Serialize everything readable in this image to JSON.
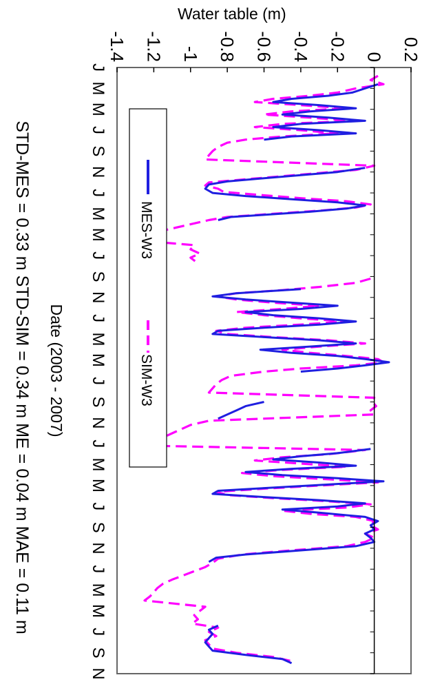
{
  "chart_data": {
    "type": "line",
    "orientation": "rotated 90 degrees clockwise",
    "ylabel": "Water table (m)",
    "xlabel": "Date (2003 - 2007)",
    "ylim": [
      -1.4,
      0.2
    ],
    "yticks": [
      "-1.4",
      "-1.2",
      "-1",
      "-0.8",
      "-0.6",
      "-0.4",
      "-0.2",
      "0",
      "0.2"
    ],
    "x_month_labels": [
      "J",
      "M",
      "M",
      "J",
      "S",
      "N",
      "J",
      "M",
      "M",
      "J",
      "S",
      "N",
      "J",
      "M",
      "M",
      "J",
      "S",
      "N",
      "J",
      "M",
      "M",
      "J",
      "S",
      "N",
      "J",
      "M",
      "M",
      "J",
      "S",
      "N"
    ],
    "xlim_months": [
      0,
      58
    ],
    "stats_text": "STD-MES = 0.33 m   STD-SIM = 0.34 m   ME = 0.04 m   MAE = 0.11 m",
    "legend_position": "inside, near bottom axis",
    "series": [
      {
        "name": "MES-W3",
        "color": "#1f1fe0",
        "style": "solid",
        "points": [
          [
            1.6,
            0.02
          ],
          [
            2.0,
            -0.05
          ],
          [
            2.4,
            -0.12
          ],
          [
            2.7,
            -0.25
          ],
          [
            3.0,
            -0.45
          ],
          [
            3.3,
            -0.55
          ],
          [
            3.6,
            -0.3
          ],
          [
            3.9,
            -0.1
          ],
          [
            4.2,
            -0.35
          ],
          [
            4.5,
            -0.5
          ],
          [
            4.8,
            -0.25
          ],
          [
            5.1,
            -0.05
          ],
          [
            5.4,
            -0.4
          ],
          [
            5.7,
            -0.55
          ],
          [
            6.0,
            -0.3
          ],
          [
            6.3,
            -0.1
          ],
          [
            6.6,
            -0.45
          ],
          [
            6.9,
            -0.6
          ],
          [
            9.6,
            -0.05
          ],
          [
            10.0,
            -0.2
          ],
          [
            10.3,
            -0.4
          ],
          [
            10.6,
            -0.6
          ],
          [
            10.9,
            -0.8
          ],
          [
            11.2,
            -0.9
          ],
          [
            11.6,
            -0.92
          ],
          [
            12.0,
            -0.88
          ],
          [
            12.3,
            -0.7
          ],
          [
            12.6,
            -0.45
          ],
          [
            12.9,
            -0.2
          ],
          [
            13.2,
            -0.05
          ],
          [
            13.5,
            -0.15
          ],
          [
            13.8,
            -0.35
          ],
          [
            14.1,
            -0.6
          ],
          [
            14.3,
            -0.78
          ],
          [
            14.6,
            -0.85
          ],
          [
            21.2,
            -0.4
          ],
          [
            21.6,
            -0.75
          ],
          [
            21.9,
            -0.88
          ],
          [
            22.2,
            -0.7
          ],
          [
            22.5,
            -0.45
          ],
          [
            22.8,
            -0.2
          ],
          [
            23.1,
            -0.4
          ],
          [
            23.4,
            -0.7
          ],
          [
            23.7,
            -0.55
          ],
          [
            24.0,
            -0.3
          ],
          [
            24.3,
            -0.1
          ],
          [
            24.6,
            -0.3
          ],
          [
            24.9,
            -0.6
          ],
          [
            25.2,
            -0.85
          ],
          [
            25.5,
            -0.88
          ],
          [
            25.8,
            -0.6
          ],
          [
            26.1,
            -0.3
          ],
          [
            26.4,
            -0.1
          ],
          [
            26.7,
            -0.35
          ],
          [
            27.0,
            -0.62
          ],
          [
            27.3,
            -0.45
          ],
          [
            27.6,
            -0.2
          ],
          [
            27.9,
            -0.05
          ],
          [
            28.2,
            0.08
          ],
          [
            28.5,
            -0.05
          ],
          [
            28.8,
            -0.2
          ],
          [
            29.1,
            -0.4
          ],
          [
            32.0,
            -0.6
          ],
          [
            32.4,
            -0.7
          ],
          [
            32.8,
            -0.75
          ],
          [
            33.2,
            -0.8
          ],
          [
            33.6,
            -0.85
          ],
          [
            36.5,
            -0.02
          ],
          [
            36.9,
            -0.2
          ],
          [
            37.2,
            -0.4
          ],
          [
            37.5,
            -0.55
          ],
          [
            37.8,
            -0.3
          ],
          [
            38.1,
            -0.1
          ],
          [
            38.4,
            -0.45
          ],
          [
            38.7,
            -0.7
          ],
          [
            39.0,
            -0.5
          ],
          [
            39.3,
            -0.2
          ],
          [
            39.6,
            0.05
          ],
          [
            39.9,
            -0.25
          ],
          [
            40.2,
            -0.55
          ],
          [
            40.5,
            -0.85
          ],
          [
            40.8,
            -0.88
          ],
          [
            41.1,
            -0.6
          ],
          [
            41.4,
            -0.3
          ],
          [
            41.7,
            -0.05
          ],
          [
            42.0,
            -0.2
          ],
          [
            42.3,
            -0.5
          ],
          [
            42.6,
            -0.3
          ],
          [
            43.0,
            -0.05
          ],
          [
            43.4,
            0.02
          ],
          [
            43.8,
            -0.02
          ],
          [
            44.2,
            0.0
          ],
          [
            44.6,
            -0.05
          ],
          [
            45.0,
            -0.02
          ],
          [
            45.4,
            0.0
          ],
          [
            45.8,
            -0.1
          ],
          [
            46.2,
            -0.4
          ],
          [
            46.6,
            -0.7
          ],
          [
            46.9,
            -0.86
          ],
          [
            47.3,
            -0.9
          ],
          [
            53.4,
            -0.85
          ],
          [
            53.8,
            -0.9
          ],
          [
            54.2,
            -0.88
          ],
          [
            54.6,
            -0.9
          ],
          [
            55.0,
            -0.92
          ],
          [
            55.4,
            -0.9
          ],
          [
            55.8,
            -0.88
          ],
          [
            56.2,
            -0.7
          ],
          [
            56.6,
            -0.5
          ],
          [
            57.0,
            -0.45
          ]
        ]
      },
      {
        "name": "SIM-W3",
        "color": "#ff00ff",
        "style": "dashed",
        "points": [
          [
            0.8,
            0.02
          ],
          [
            1.2,
            -0.02
          ],
          [
            1.6,
            0.05
          ],
          [
            2.0,
            -0.1
          ],
          [
            2.4,
            -0.2
          ],
          [
            2.7,
            -0.35
          ],
          [
            3.0,
            -0.55
          ],
          [
            3.3,
            -0.65
          ],
          [
            3.6,
            -0.4
          ],
          [
            3.9,
            -0.15
          ],
          [
            4.2,
            -0.45
          ],
          [
            4.5,
            -0.6
          ],
          [
            4.8,
            -0.35
          ],
          [
            5.1,
            -0.1
          ],
          [
            5.4,
            -0.5
          ],
          [
            5.7,
            -0.65
          ],
          [
            6.0,
            -0.4
          ],
          [
            6.3,
            -0.2
          ],
          [
            6.6,
            -0.5
          ],
          [
            6.9,
            -0.7
          ],
          [
            7.2,
            -0.8
          ],
          [
            7.6,
            -0.85
          ],
          [
            8.0,
            -0.88
          ],
          [
            8.4,
            -0.9
          ],
          [
            8.8,
            -0.92
          ],
          [
            9.4,
            0.0
          ],
          [
            9.8,
            -0.1
          ],
          [
            10.1,
            -0.3
          ],
          [
            10.4,
            -0.5
          ],
          [
            10.7,
            -0.7
          ],
          [
            11.0,
            -0.9
          ],
          [
            11.3,
            -0.92
          ],
          [
            11.6,
            -0.85
          ],
          [
            11.9,
            -0.82
          ],
          [
            12.2,
            -0.62
          ],
          [
            12.5,
            -0.4
          ],
          [
            12.8,
            -0.15
          ],
          [
            13.1,
            -0.02
          ],
          [
            13.4,
            -0.1
          ],
          [
            13.7,
            -0.3
          ],
          [
            14.0,
            -0.55
          ],
          [
            14.3,
            -0.8
          ],
          [
            14.6,
            -0.9
          ],
          [
            15.0,
            -1.0
          ],
          [
            15.4,
            -1.1
          ],
          [
            15.8,
            -1.2
          ],
          [
            16.2,
            -1.25
          ],
          [
            16.6,
            -1.25
          ],
          [
            17.0,
            -0.98
          ],
          [
            17.4,
            -1.0
          ],
          [
            17.8,
            -0.95
          ],
          [
            18.2,
            -1.0
          ],
          [
            18.6,
            -0.97
          ],
          [
            20.2,
            -0.02
          ],
          [
            20.6,
            -0.1
          ],
          [
            21.0,
            -0.3
          ],
          [
            21.3,
            -0.5
          ],
          [
            21.6,
            -0.75
          ],
          [
            21.9,
            -0.86
          ],
          [
            22.2,
            -0.75
          ],
          [
            22.5,
            -0.55
          ],
          [
            22.8,
            -0.3
          ],
          [
            23.1,
            -0.5
          ],
          [
            23.4,
            -0.75
          ],
          [
            23.7,
            -0.6
          ],
          [
            24.0,
            -0.4
          ],
          [
            24.3,
            -0.15
          ],
          [
            24.6,
            -0.4
          ],
          [
            24.9,
            -0.7
          ],
          [
            25.2,
            -0.86
          ],
          [
            25.5,
            -0.8
          ],
          [
            25.8,
            -0.55
          ],
          [
            26.1,
            -0.25
          ],
          [
            26.4,
            -0.05
          ],
          [
            26.7,
            -0.3
          ],
          [
            27.0,
            -0.5
          ],
          [
            27.3,
            -0.35
          ],
          [
            27.6,
            -0.15
          ],
          [
            27.9,
            0.02
          ],
          [
            28.2,
            0.05
          ],
          [
            28.5,
            -0.1
          ],
          [
            28.8,
            -0.4
          ],
          [
            29.1,
            -0.6
          ],
          [
            29.5,
            -0.78
          ],
          [
            29.9,
            -0.83
          ],
          [
            30.3,
            -0.86
          ],
          [
            30.7,
            -0.88
          ],
          [
            31.1,
            -0.9
          ],
          [
            31.6,
            0.0
          ],
          [
            32.0,
            -0.01
          ],
          [
            32.4,
            0.01
          ],
          [
            32.8,
            -0.02
          ],
          [
            33.2,
            0.0
          ],
          [
            33.8,
            -0.9
          ],
          [
            34.2,
            -1.0
          ],
          [
            34.6,
            -1.05
          ],
          [
            35.0,
            -1.1
          ],
          [
            35.4,
            -1.15
          ],
          [
            35.8,
            -1.18
          ],
          [
            36.2,
            -1.2
          ],
          [
            36.6,
            -0.05
          ],
          [
            37.0,
            -0.25
          ],
          [
            37.3,
            -0.5
          ],
          [
            37.6,
            -0.65
          ],
          [
            37.9,
            -0.4
          ],
          [
            38.2,
            -0.15
          ],
          [
            38.5,
            -0.5
          ],
          [
            38.8,
            -0.72
          ],
          [
            39.1,
            -0.55
          ],
          [
            39.4,
            -0.25
          ],
          [
            39.7,
            0.02
          ],
          [
            40.0,
            -0.3
          ],
          [
            40.3,
            -0.6
          ],
          [
            40.6,
            -0.86
          ],
          [
            40.9,
            -0.8
          ],
          [
            41.2,
            -0.55
          ],
          [
            41.5,
            -0.25
          ],
          [
            41.8,
            -0.02
          ],
          [
            42.1,
            -0.15
          ],
          [
            42.4,
            -0.5
          ],
          [
            42.7,
            -0.35
          ],
          [
            43.0,
            -0.1
          ],
          [
            43.4,
            0.0
          ],
          [
            43.8,
            -0.02
          ],
          [
            44.2,
            0.02
          ],
          [
            44.6,
            -0.05
          ],
          [
            45.0,
            0.0
          ],
          [
            45.4,
            -0.05
          ],
          [
            45.8,
            -0.15
          ],
          [
            46.2,
            -0.45
          ],
          [
            46.6,
            -0.72
          ],
          [
            47.0,
            -0.85
          ],
          [
            47.4,
            -0.88
          ],
          [
            47.8,
            -0.92
          ],
          [
            48.2,
            -0.98
          ],
          [
            48.6,
            -1.04
          ],
          [
            49.0,
            -1.1
          ],
          [
            49.4,
            -1.15
          ],
          [
            49.8,
            -1.18
          ],
          [
            50.2,
            -1.2
          ],
          [
            50.6,
            -1.22
          ],
          [
            51.0,
            -1.25
          ],
          [
            51.6,
            -0.92
          ],
          [
            52.0,
            -0.95
          ],
          [
            52.4,
            -0.98
          ],
          [
            52.8,
            -0.96
          ],
          [
            53.2,
            -0.99
          ],
          [
            53.6,
            -0.85
          ],
          [
            54.0,
            -0.9
          ],
          [
            54.4,
            -0.86
          ],
          [
            54.8,
            -0.92
          ],
          [
            55.2,
            -0.9
          ],
          [
            55.6,
            -0.88
          ],
          [
            56.0,
            -0.75
          ],
          [
            56.4,
            -0.55
          ],
          [
            56.8,
            -0.45
          ]
        ]
      }
    ]
  }
}
